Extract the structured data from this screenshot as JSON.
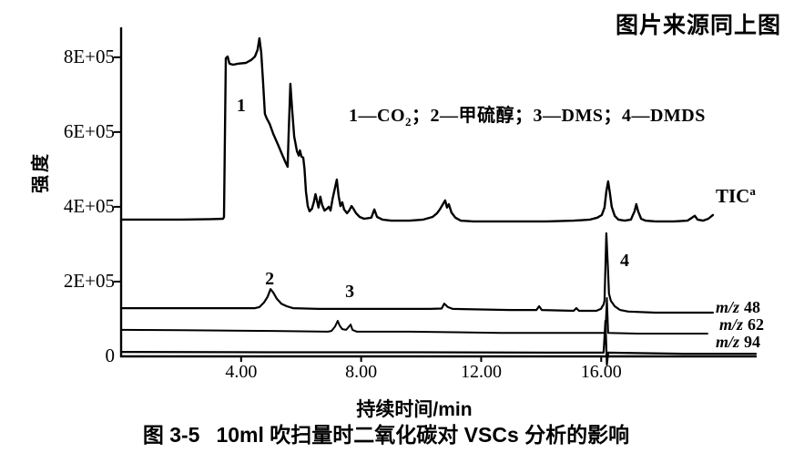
{
  "header": {
    "source_note": "图片来源同上图"
  },
  "legend": {
    "prefix": "1—CO",
    "sub": "2",
    "rest": "；2—甲硫醇；3—DMS；4—DMDS"
  },
  "trace_labels": {
    "tic": {
      "text": "TIC",
      "sup": "a"
    },
    "mz48": {
      "prefix": "m/z",
      "value": "48"
    },
    "mz62": {
      "prefix": "m/z",
      "value": "62"
    },
    "mz94": {
      "prefix": "m/z",
      "value": "94"
    }
  },
  "figure": {
    "caption_label": "图 3-5",
    "caption_text": "10ml 吹扫量时二氧化碳对 VSCs 分析的影响"
  },
  "chart_data": {
    "type": "line",
    "title": "图 3-5 10ml吹扫量时二氧化碳对VSCs分析的影响",
    "xlabel": "持续时间/min",
    "ylabel": "强度",
    "xlim": [
      0,
      22
    ],
    "ylim": [
      0,
      880000
    ],
    "grid": false,
    "legend_note": "1—CO₂；2—甲硫醇；3—DMS；4—DMDS",
    "x_ticks": [
      {
        "value": 4,
        "label": "4.00"
      },
      {
        "value": 8,
        "label": "8.00"
      },
      {
        "value": 12,
        "label": "12.00"
      },
      {
        "value": 16,
        "label": "16.00"
      }
    ],
    "y_ticks": [
      {
        "value": 800000,
        "label": "8E+05"
      },
      {
        "value": 600000,
        "label": "6E+05"
      },
      {
        "value": 400000,
        "label": "4E+05"
      },
      {
        "value": 200000,
        "label": "2E+05"
      },
      {
        "value": 0,
        "label": "0"
      }
    ],
    "annotations": [
      {
        "label": "1",
        "t": 4.0,
        "v": 666000
      },
      {
        "label": "2",
        "t": 4.95,
        "v": 202000
      },
      {
        "label": "3",
        "t": 7.62,
        "v": 168000
      },
      {
        "label": "4",
        "t": 16.78,
        "v": 251000
      }
    ],
    "series": [
      {
        "name": "TIC",
        "peak_ids": [
          "1"
        ],
        "points": [
          [
            0,
            366000
          ],
          [
            1.0,
            366000
          ],
          [
            2.0,
            366000
          ],
          [
            3.0,
            367000
          ],
          [
            3.4,
            368000
          ],
          [
            3.43,
            373000
          ],
          [
            3.49,
            797000
          ],
          [
            3.55,
            802000
          ],
          [
            3.61,
            783000
          ],
          [
            3.73,
            780000
          ],
          [
            3.91,
            783000
          ],
          [
            4.16,
            785000
          ],
          [
            4.34,
            793000
          ],
          [
            4.46,
            802000
          ],
          [
            4.55,
            820000
          ],
          [
            4.61,
            851000
          ],
          [
            4.67,
            812000
          ],
          [
            4.73,
            734000
          ],
          [
            4.79,
            649000
          ],
          [
            4.85,
            637000
          ],
          [
            4.95,
            622000
          ],
          [
            5.07,
            595000
          ],
          [
            5.22,
            568000
          ],
          [
            5.37,
            539000
          ],
          [
            5.49,
            517000
          ],
          [
            5.55,
            507000
          ],
          [
            5.58,
            588000
          ],
          [
            5.64,
            729000
          ],
          [
            5.7,
            661000
          ],
          [
            5.77,
            588000
          ],
          [
            5.86,
            549000
          ],
          [
            5.92,
            537000
          ],
          [
            5.96,
            551000
          ],
          [
            6.01,
            534000
          ],
          [
            6.07,
            532000
          ],
          [
            6.11,
            502000
          ],
          [
            6.16,
            441000
          ],
          [
            6.22,
            402000
          ],
          [
            6.28,
            388000
          ],
          [
            6.36,
            395000
          ],
          [
            6.42,
            412000
          ],
          [
            6.48,
            434000
          ],
          [
            6.52,
            419000
          ],
          [
            6.58,
            398000
          ],
          [
            6.64,
            427000
          ],
          [
            6.7,
            405000
          ],
          [
            6.78,
            390000
          ],
          [
            6.86,
            395000
          ],
          [
            6.92,
            400000
          ],
          [
            6.98,
            390000
          ],
          [
            7.05,
            422000
          ],
          [
            7.19,
            473000
          ],
          [
            7.25,
            429000
          ],
          [
            7.31,
            402000
          ],
          [
            7.37,
            412000
          ],
          [
            7.43,
            393000
          ],
          [
            7.53,
            383000
          ],
          [
            7.6,
            390000
          ],
          [
            7.68,
            402000
          ],
          [
            7.74,
            395000
          ],
          [
            7.83,
            383000
          ],
          [
            7.95,
            373000
          ],
          [
            8.1,
            368000
          ],
          [
            8.34,
            371000
          ],
          [
            8.44,
            393000
          ],
          [
            8.53,
            373000
          ],
          [
            8.71,
            366000
          ],
          [
            9.0,
            363000
          ],
          [
            9.62,
            363000
          ],
          [
            10.07,
            366000
          ],
          [
            10.38,
            373000
          ],
          [
            10.53,
            383000
          ],
          [
            10.62,
            393000
          ],
          [
            10.71,
            405000
          ],
          [
            10.8,
            417000
          ],
          [
            10.86,
            398000
          ],
          [
            10.92,
            407000
          ],
          [
            11.01,
            385000
          ],
          [
            11.14,
            371000
          ],
          [
            11.32,
            363000
          ],
          [
            11.74,
            361000
          ],
          [
            12.96,
            361000
          ],
          [
            14.17,
            361000
          ],
          [
            15.08,
            363000
          ],
          [
            15.63,
            366000
          ],
          [
            15.87,
            371000
          ],
          [
            16.02,
            378000
          ],
          [
            16.11,
            398000
          ],
          [
            16.17,
            441000
          ],
          [
            16.23,
            468000
          ],
          [
            16.29,
            437000
          ],
          [
            16.35,
            400000
          ],
          [
            16.45,
            376000
          ],
          [
            16.57,
            366000
          ],
          [
            16.78,
            363000
          ],
          [
            16.99,
            366000
          ],
          [
            17.11,
            388000
          ],
          [
            17.17,
            407000
          ],
          [
            17.23,
            388000
          ],
          [
            17.33,
            368000
          ],
          [
            17.48,
            363000
          ],
          [
            17.81,
            361000
          ],
          [
            18.42,
            361000
          ],
          [
            18.87,
            363000
          ],
          [
            19.03,
            371000
          ],
          [
            19.12,
            376000
          ],
          [
            19.21,
            366000
          ],
          [
            19.39,
            363000
          ],
          [
            19.57,
            368000
          ],
          [
            19.72,
            378000
          ]
        ]
      },
      {
        "name": "m/z 48",
        "peak_ids": [
          "2",
          "4"
        ],
        "points": [
          [
            0,
            129000
          ],
          [
            2.0,
            129000
          ],
          [
            4.46,
            129000
          ],
          [
            4.61,
            132000
          ],
          [
            4.76,
            144000
          ],
          [
            4.88,
            159000
          ],
          [
            4.98,
            180000
          ],
          [
            5.07,
            171000
          ],
          [
            5.19,
            154000
          ],
          [
            5.34,
            141000
          ],
          [
            5.52,
            134000
          ],
          [
            5.73,
            129000
          ],
          [
            6.58,
            127000
          ],
          [
            8.1,
            127000
          ],
          [
            9.44,
            127000
          ],
          [
            10.3,
            127000
          ],
          [
            10.68,
            128000
          ],
          [
            10.77,
            141000
          ],
          [
            10.89,
            132000
          ],
          [
            11.05,
            127000
          ],
          [
            12.96,
            124000
          ],
          [
            13.84,
            124000
          ],
          [
            13.93,
            134000
          ],
          [
            14.02,
            124000
          ],
          [
            15.08,
            122000
          ],
          [
            15.17,
            129000
          ],
          [
            15.26,
            122000
          ],
          [
            15.84,
            122000
          ],
          [
            15.99,
            127000
          ],
          [
            16.08,
            139000
          ],
          [
            16.11,
            149000
          ],
          [
            16.17,
            329000
          ],
          [
            16.23,
            222000
          ],
          [
            16.26,
            168000
          ],
          [
            16.32,
            149000
          ],
          [
            16.45,
            134000
          ],
          [
            16.63,
            124000
          ],
          [
            16.9,
            120000
          ],
          [
            17.81,
            117000
          ],
          [
            19.72,
            117000
          ]
        ]
      },
      {
        "name": "m/z 62",
        "peak_ids": [
          "3",
          "4"
        ],
        "points": [
          [
            0,
            71000
          ],
          [
            2.0,
            70000
          ],
          [
            5.07,
            68000
          ],
          [
            6.89,
            66000
          ],
          [
            7.01,
            68000
          ],
          [
            7.13,
            80000
          ],
          [
            7.22,
            95000
          ],
          [
            7.28,
            83000
          ],
          [
            7.37,
            73000
          ],
          [
            7.5,
            71000
          ],
          [
            7.65,
            85000
          ],
          [
            7.71,
            71000
          ],
          [
            7.86,
            66000
          ],
          [
            9.62,
            66000
          ],
          [
            12.65,
            63000
          ],
          [
            15.69,
            63000
          ],
          [
            16.14,
            63000
          ],
          [
            16.19,
            156000
          ],
          [
            16.23,
            63000
          ],
          [
            17.2,
            61000
          ],
          [
            19.54,
            61000
          ]
        ]
      },
      {
        "name": "m/z 94",
        "peak_ids": [
          "4"
        ],
        "points": [
          [
            0,
            12000
          ],
          [
            5.0,
            11000
          ],
          [
            10.0,
            11000
          ],
          [
            14.17,
            10000
          ],
          [
            16.08,
            10000
          ],
          [
            16.14,
            95000
          ],
          [
            16.19,
            -22000
          ],
          [
            16.23,
            10000
          ],
          [
            18.72,
            7000
          ],
          [
            21.15,
            7000
          ]
        ]
      }
    ]
  }
}
